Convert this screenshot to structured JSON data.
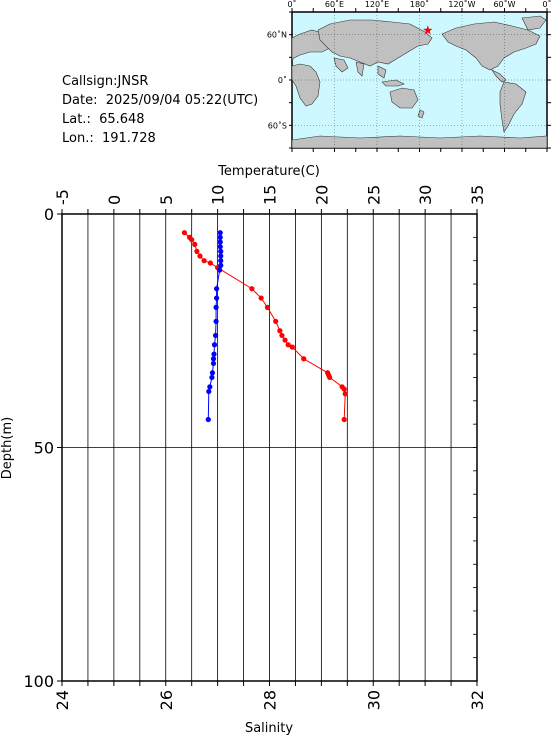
{
  "info": {
    "callsign": "Callsign:JNSR",
    "date": "Date:  2025/09/04 05:22(UTC)",
    "lat": "Lat.:  65.648",
    "lon": "Lon.:  191.728"
  },
  "map": {
    "top_labels": [
      "0˚",
      "60˚E",
      "120˚E",
      "180˚",
      "120˚W",
      "60˚W",
      "0˚"
    ],
    "lat_labels": [
      "60˚N",
      "0˚",
      "60˚S"
    ],
    "station_marker": {
      "lat": 65.648,
      "lon": 191.728,
      "color": "#ff0000"
    },
    "ocean_color": "#cdf8ff",
    "land_color": "#c0c0c0"
  },
  "chart_data": {
    "type": "line",
    "ylabel": "Depth(m)",
    "ylim": [
      0,
      100
    ],
    "y_ticks": [
      0,
      50,
      100
    ],
    "grid": true,
    "top_axis": {
      "label": "Temperature(C)",
      "range": [
        -5,
        35
      ],
      "ticks": [
        -5,
        0,
        5,
        10,
        15,
        20,
        25,
        30,
        35
      ]
    },
    "bottom_axis": {
      "label": "Salinity",
      "range": [
        24,
        32
      ],
      "ticks": [
        24,
        26,
        28,
        30,
        32
      ]
    },
    "series": [
      {
        "axis": "top",
        "color": "#ff0000",
        "depth": [
          4,
          5,
          5.5,
          6.5,
          8,
          9,
          10,
          10.5,
          11.5,
          16,
          18,
          20,
          23,
          25,
          26,
          27,
          28,
          28.5,
          31,
          34,
          34.5,
          35,
          37,
          37.5,
          38.5,
          44
        ],
        "values": [
          6.8,
          7.3,
          7.5,
          7.8,
          8.0,
          8.3,
          8.7,
          9.3,
          10.0,
          13.3,
          14.2,
          14.8,
          15.6,
          16.0,
          16.2,
          16.5,
          16.8,
          17.2,
          18.3,
          20.6,
          20.7,
          20.8,
          22.0,
          22.2,
          22.3,
          22.2
        ]
      },
      {
        "axis": "bottom",
        "color": "#0000ff",
        "depth": [
          4,
          5,
          6,
          7,
          8,
          9,
          10,
          11,
          12,
          16,
          18,
          20,
          23,
          26,
          28,
          30,
          31,
          32,
          34,
          35,
          37,
          38,
          44
        ],
        "values": [
          27.05,
          27.05,
          27.05,
          27.05,
          27.06,
          27.06,
          27.06,
          27.06,
          27.04,
          26.98,
          26.98,
          26.97,
          26.97,
          26.96,
          26.94,
          26.93,
          26.92,
          26.92,
          26.9,
          26.89,
          26.85,
          26.83,
          26.82
        ]
      }
    ]
  }
}
